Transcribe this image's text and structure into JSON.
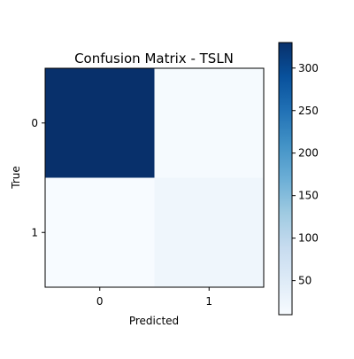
{
  "chart_data": {
    "type": "heatmap",
    "title": "Confusion Matrix - TSLN",
    "xlabel": "Predicted",
    "ylabel": "True",
    "x_categories": [
      "0",
      "1"
    ],
    "y_categories": [
      "0",
      "1"
    ],
    "values": [
      [
        330,
        13
      ],
      [
        10,
        23
      ]
    ],
    "colormap": "Blues",
    "colorbar": {
      "range": [
        10,
        330
      ],
      "ticks": [
        50,
        100,
        150,
        200,
        250,
        300
      ]
    },
    "grid": false
  }
}
